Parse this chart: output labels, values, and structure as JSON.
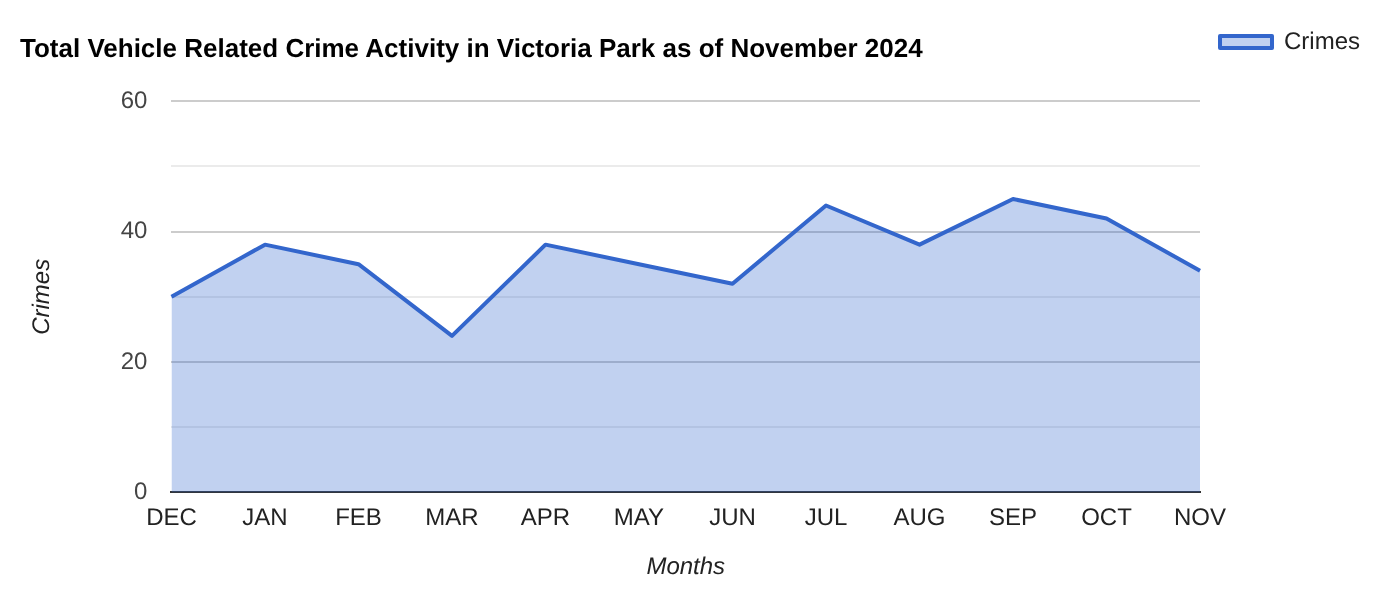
{
  "chart_data": {
    "type": "area",
    "title": "Total Vehicle Related Crime Activity in Victoria Park as of November 2024",
    "xlabel": "Months",
    "ylabel": "Crimes",
    "categories": [
      "DEC",
      "JAN",
      "FEB",
      "MAR",
      "APR",
      "MAY",
      "JUN",
      "JUL",
      "AUG",
      "SEP",
      "OCT",
      "NOV"
    ],
    "series": [
      {
        "name": "Crimes",
        "color": "#3366cc",
        "values": [
          30,
          38,
          35,
          24,
          38,
          35,
          32,
          44,
          38,
          45,
          42,
          34
        ]
      }
    ],
    "ylim": [
      0,
      60
    ],
    "yticks": [
      0,
      {
        "value": 10,
        "label": null
      },
      20,
      {
        "value": 30,
        "label": null
      },
      40,
      {
        "value": 50,
        "label": null
      },
      60
    ],
    "grid": "y",
    "legend": "top right",
    "marker": "none"
  }
}
